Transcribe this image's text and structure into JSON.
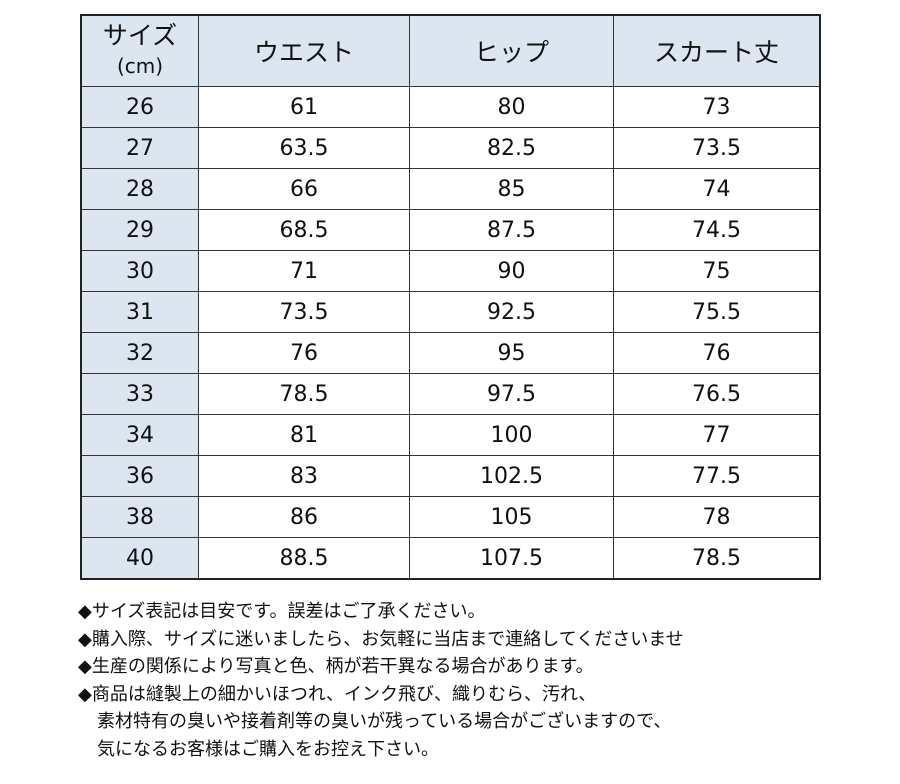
{
  "table": {
    "headers": {
      "size": "サイズ",
      "size_unit": "(cm)",
      "waist": "ウエスト",
      "hip": "ヒップ",
      "skirt_length": "スカート丈"
    },
    "rows": [
      [
        "26",
        "61",
        "80",
        "73"
      ],
      [
        "27",
        "63.5",
        "82.5",
        "73.5"
      ],
      [
        "28",
        "66",
        "85",
        "74"
      ],
      [
        "29",
        "68.5",
        "87.5",
        "74.5"
      ],
      [
        "30",
        "71",
        "90",
        "75"
      ],
      [
        "31",
        "73.5",
        "92.5",
        "75.5"
      ],
      [
        "32",
        "76",
        "95",
        "76"
      ],
      [
        "33",
        "78.5",
        "97.5",
        "76.5"
      ],
      [
        "34",
        "81",
        "100",
        "77"
      ],
      [
        "36",
        "83",
        "102.5",
        "77.5"
      ],
      [
        "38",
        "86",
        "105",
        "78"
      ],
      [
        "40",
        "88.5",
        "107.5",
        "78.5"
      ]
    ],
    "header_bg": "#dce6f1"
  },
  "notes": [
    "◆サイズ表記は目安です。誤差はご了承ください。",
    "◆購入際、サイズに迷いましたら、お気軽に当店まで連絡してくださいませ",
    "◆生産の関係により写真と色、柄が若干異なる場合があります。",
    "◆商品は縫製上の細かいほつれ、インク飛び、織りむら、汚れ、",
    "素材特有の臭いや接着剤等の臭いが残っている場合がございますので、",
    "気になるお客様はご購入をお控え下さい。"
  ]
}
